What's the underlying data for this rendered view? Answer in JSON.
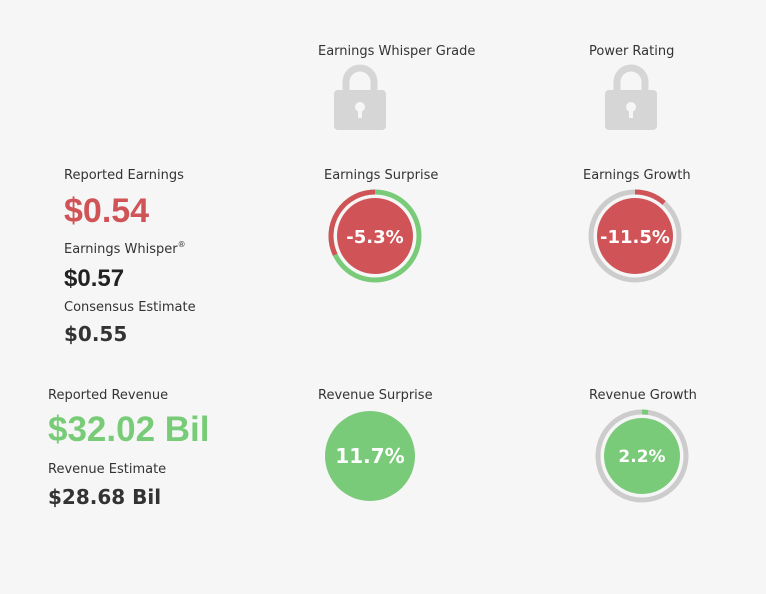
{
  "grades": {
    "whisper_grade_label": "Earnings Whisper Grade",
    "power_rating_label": "Power Rating",
    "lock_icon": "lock-icon"
  },
  "earnings": {
    "reported_label": "Reported Earnings",
    "reported_value": "$0.54",
    "whisper_label": "Earnings Whisper",
    "whisper_mark": "®",
    "whisper_value": "$0.57",
    "consensus_label": "Consensus Estimate",
    "consensus_value": "$0.55"
  },
  "earnings_surprise": {
    "label": "Earnings Surprise",
    "value": "-5.3%",
    "fill_fraction": 0.053,
    "ring_color": "#7acb79",
    "fill_color": "#d05457"
  },
  "earnings_growth": {
    "label": "Earnings Growth",
    "value": "-11.5%",
    "fill_fraction": 0.115,
    "ring_color": "#cccccc",
    "fill_color": "#d05457"
  },
  "revenue": {
    "reported_label": "Reported Revenue",
    "reported_value": "$32.02 Bil",
    "estimate_label": "Revenue Estimate",
    "estimate_value": "$28.68 Bil"
  },
  "revenue_surprise": {
    "label": "Revenue Surprise",
    "value": "11.7%",
    "fill_color": "#7acb79"
  },
  "revenue_growth": {
    "label": "Revenue Growth",
    "value": "2.2%",
    "fill_fraction": 0.022,
    "ring_color": "#cccccc",
    "fill_color": "#7acb79"
  }
}
